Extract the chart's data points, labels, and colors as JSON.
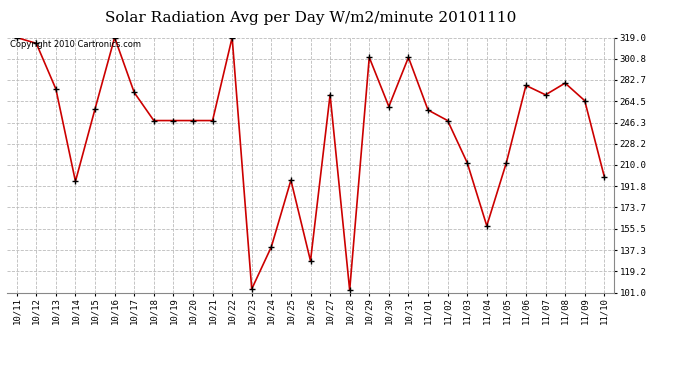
{
  "title": "Solar Radiation Avg per Day W/m2/minute 20101110",
  "copyright_text": "Copyright 2010 Cartronics.com",
  "dates": [
    "10/11",
    "10/12",
    "10/13",
    "10/14",
    "10/15",
    "10/16",
    "10/17",
    "10/18",
    "10/19",
    "10/20",
    "10/21",
    "10/22",
    "10/23",
    "10/24",
    "10/25",
    "10/26",
    "10/27",
    "10/28",
    "10/29",
    "10/30",
    "10/31",
    "11/01",
    "11/02",
    "11/03",
    "11/04",
    "11/05",
    "11/06",
    "11/07",
    "11/08",
    "11/09",
    "11/10"
  ],
  "values": [
    319.0,
    314.0,
    275.0,
    196.0,
    258.0,
    319.0,
    272.0,
    248.0,
    248.0,
    248.0,
    248.0,
    319.0,
    104.0,
    140.0,
    197.0,
    128.0,
    270.0,
    103.0,
    302.0,
    260.0,
    302.0,
    257.0,
    248.0,
    212.0,
    158.0,
    212.0,
    278.0,
    270.0,
    280.0,
    265.0,
    200.0
  ],
  "line_color": "#cc0000",
  "marker_color": "#000000",
  "bg_color": "#ffffff",
  "grid_color": "#bbbbbb",
  "ylim_min": 101.0,
  "ylim_max": 319.0,
  "yticks": [
    101.0,
    119.2,
    137.3,
    155.5,
    173.7,
    191.8,
    210.0,
    228.2,
    246.3,
    264.5,
    282.7,
    300.8,
    319.0
  ],
  "title_fontsize": 11,
  "copyright_fontsize": 6,
  "tick_fontsize": 6.5,
  "label_rotation": 90
}
